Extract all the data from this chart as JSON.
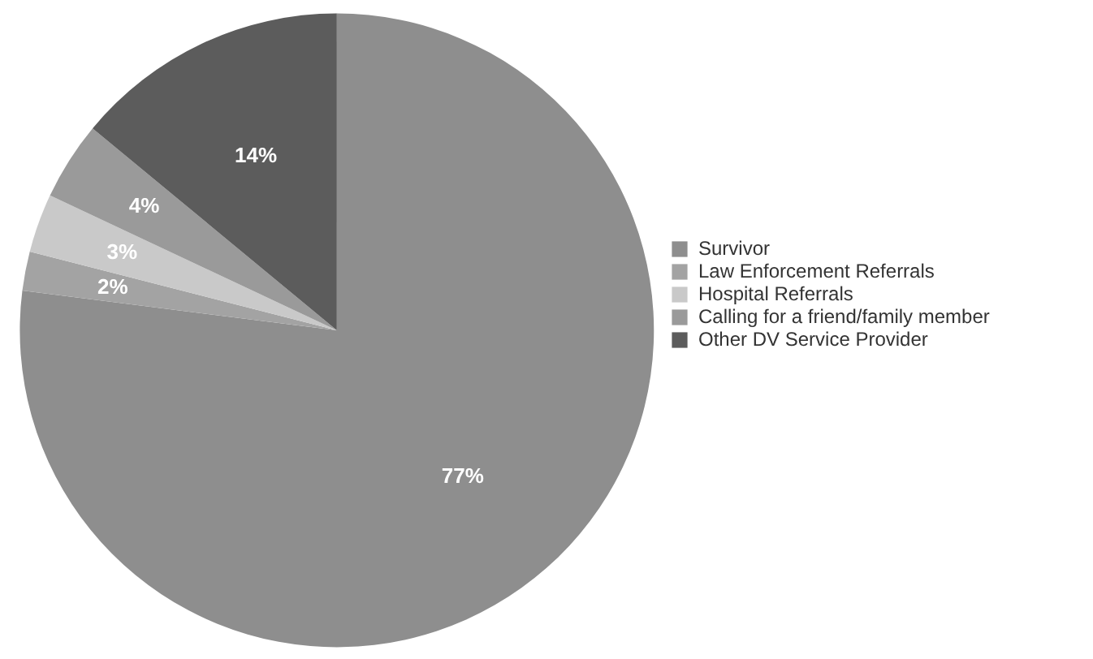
{
  "chart_data": {
    "type": "pie",
    "categories": [
      "Survivor",
      "Law Enforcement Referrals",
      "Hospital Referrals",
      "Calling for a friend/family member",
      "Other DV Service Provider"
    ],
    "values": [
      77,
      2,
      3,
      4,
      14
    ],
    "colors": [
      "#8e8e8e",
      "#a3a3a3",
      "#c9c9c9",
      "#9a9a9a",
      "#5c5c5c"
    ],
    "value_labels": [
      "77%",
      "2%",
      "3%",
      "4%",
      "14%"
    ],
    "legend": "right"
  }
}
